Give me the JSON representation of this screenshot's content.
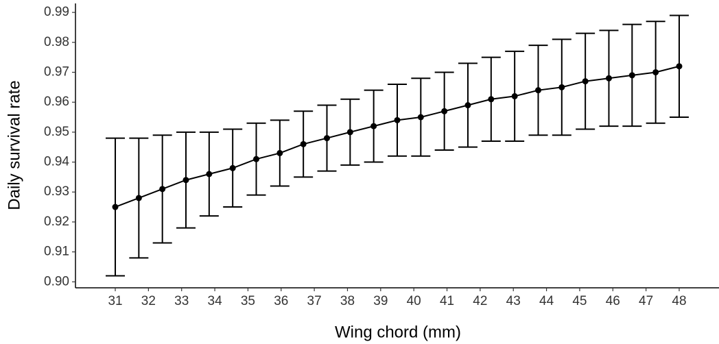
{
  "chart_data": {
    "type": "line",
    "x_label": "Wing chord (mm)",
    "y_label": "Daily survival rate",
    "x": [
      31,
      31.71,
      32.42,
      33.13,
      33.83,
      34.54,
      35.25,
      35.96,
      36.67,
      37.38,
      38.08,
      38.79,
      39.5,
      40.21,
      40.92,
      41.63,
      42.33,
      43.04,
      43.75,
      44.46,
      45.17,
      45.88,
      46.58,
      47.29,
      48
    ],
    "series": [
      {
        "color": "#000000",
        "values": [
          0.925,
          0.928,
          0.931,
          0.934,
          0.936,
          0.938,
          0.941,
          0.943,
          0.946,
          0.948,
          0.95,
          0.952,
          0.954,
          0.955,
          0.957,
          0.959,
          0.961,
          0.962,
          0.964,
          0.965,
          0.967,
          0.968,
          0.969,
          0.97,
          0.972
        ],
        "lower": [
          0.902,
          0.908,
          0.913,
          0.918,
          0.922,
          0.925,
          0.929,
          0.932,
          0.935,
          0.937,
          0.939,
          0.94,
          0.942,
          0.942,
          0.944,
          0.945,
          0.947,
          0.947,
          0.949,
          0.949,
          0.951,
          0.952,
          0.952,
          0.953,
          0.955
        ],
        "upper": [
          0.948,
          0.948,
          0.949,
          0.95,
          0.95,
          0.951,
          0.953,
          0.954,
          0.957,
          0.959,
          0.961,
          0.964,
          0.966,
          0.968,
          0.97,
          0.973,
          0.975,
          0.977,
          0.979,
          0.981,
          0.983,
          0.984,
          0.986,
          0.987,
          0.989
        ]
      }
    ],
    "xlim": [
      29.8,
      49.2
    ],
    "xticks": [
      31,
      32,
      33,
      34,
      35,
      36,
      37,
      38,
      39,
      40,
      41,
      42,
      43,
      44,
      45,
      46,
      47,
      48
    ],
    "ylim": [
      0.898,
      0.993
    ],
    "yticks": [
      {
        "value": 0.9,
        "label": "0.90"
      },
      0.91,
      0.92,
      0.93,
      0.94,
      0.95,
      0.96,
      0.97,
      0.98,
      0.99
    ],
    "grid": false
  }
}
